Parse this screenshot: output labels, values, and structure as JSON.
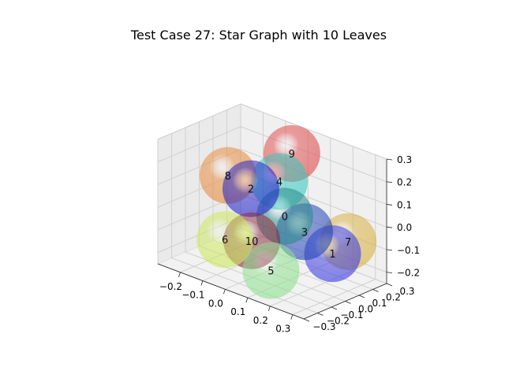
{
  "figure": {
    "title": "Test Case 27: Star Graph with 10 Leaves"
  },
  "chart_data": {
    "type": "scatter",
    "projection": "3d",
    "title": "Test Case 27: Star Graph with 10 Leaves",
    "xlabel": "",
    "ylabel": "",
    "zlabel": "",
    "xlim": [
      -0.3,
      0.35
    ],
    "ylim": [
      -0.3,
      0.3
    ],
    "zlim": [
      -0.25,
      0.3
    ],
    "x_ticks": [
      "−0.2",
      "−0.1",
      "0.0",
      "0.1",
      "0.2",
      "0.3"
    ],
    "y_ticks": [
      "−0.3",
      "−0.2",
      "−0.1",
      "0.0",
      "0.1",
      "0.2",
      "0.3"
    ],
    "z_ticks": [
      "−0.2",
      "−0.1",
      "0.0",
      "0.1",
      "0.2",
      "0.3"
    ],
    "grid": true,
    "marker": "translucent sphere",
    "nodes": [
      {
        "label": "0",
        "x": 0.05,
        "y": 0.05,
        "z": 0.0,
        "color": "#2a8a8a"
      },
      {
        "label": "1",
        "x": 0.22,
        "y": 0.12,
        "z": -0.12,
        "color": "#3a3ae0"
      },
      {
        "label": "2",
        "x": -0.07,
        "y": -0.0,
        "z": 0.09,
        "color": "#2222c8"
      },
      {
        "label": "3",
        "x": 0.12,
        "y": 0.08,
        "z": -0.05,
        "color": "#2244b8"
      },
      {
        "label": "4",
        "x": 0.02,
        "y": 0.06,
        "z": 0.14,
        "color": "#33c8c0"
      },
      {
        "label": "5",
        "x": 0.13,
        "y": -0.18,
        "z": -0.15,
        "color": "#8ee08e"
      },
      {
        "label": "6",
        "x": -0.05,
        "y": -0.22,
        "z": -0.07,
        "color": "#cce85a"
      },
      {
        "label": "7",
        "x": 0.24,
        "y": 0.2,
        "z": -0.08,
        "color": "#d8b040"
      },
      {
        "label": "8",
        "x": -0.16,
        "y": -0.02,
        "z": 0.12,
        "color": "#e88a3a"
      },
      {
        "label": "9",
        "x": 0.02,
        "y": 0.15,
        "z": 0.24,
        "color": "#e04848"
      },
      {
        "label": "10",
        "x": 0.02,
        "y": -0.14,
        "z": -0.07,
        "color": "#8a2a40"
      }
    ]
  }
}
